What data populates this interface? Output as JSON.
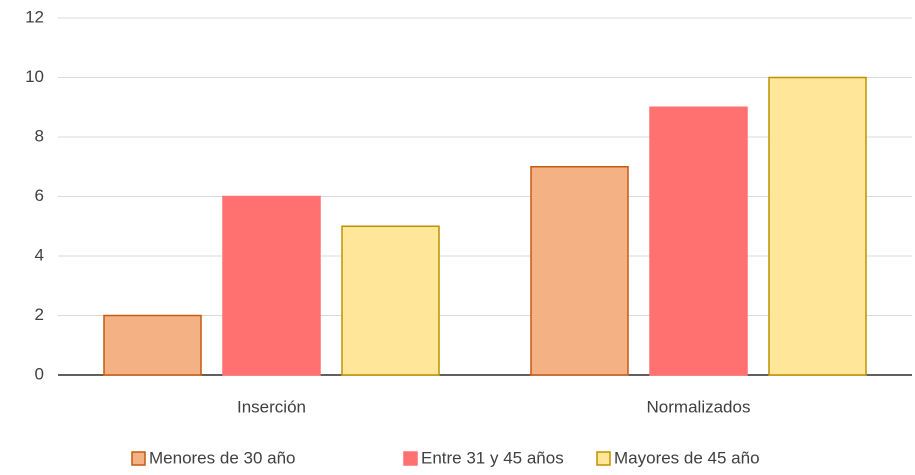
{
  "chart_data": {
    "type": "bar",
    "categories": [
      "Inserción",
      "Normalizados"
    ],
    "series": [
      {
        "name": "Menores de 30 año",
        "color": "#f4b183",
        "edgecolor": "#c55a11",
        "values": [
          2,
          7
        ]
      },
      {
        "name": "Entre 31 y 45 años",
        "color": "#ff7070",
        "edgecolor": "#ff7070",
        "values": [
          6,
          9
        ]
      },
      {
        "name": "Mayores de 45 año",
        "color": "#ffe699",
        "edgecolor": "#bf9000",
        "values": [
          5,
          10
        ]
      }
    ],
    "ylim": [
      0,
      12
    ],
    "yticks": [
      0,
      2,
      4,
      6,
      8,
      10,
      12
    ],
    "grid": true,
    "legend": "bottom"
  }
}
